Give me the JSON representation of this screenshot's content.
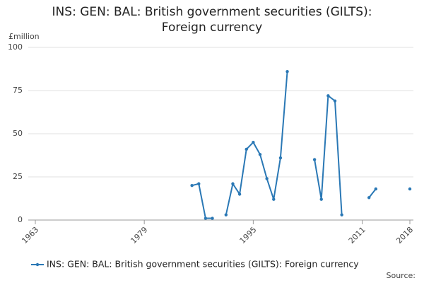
{
  "chart_data": {
    "type": "line",
    "title": "INS: GEN: BAL: British government securities (GILTS): Foreign currency",
    "y_axis_label": "£million",
    "x": [
      1986,
      1987,
      1988,
      1989,
      1990,
      1991,
      1992,
      1993,
      1994,
      1995,
      1996,
      1997,
      1998,
      1999,
      2000,
      2001,
      2002,
      2003,
      2004,
      2005,
      2006,
      2007,
      2008,
      2009,
      2010,
      2011,
      2012,
      2013,
      2014,
      2015,
      2016,
      2017,
      2018
    ],
    "series": [
      {
        "name": "INS: GEN: BAL: British government securities (GILTS): Foreign currency",
        "color": "#2a78b5",
        "values": [
          20,
          21,
          1,
          1,
          null,
          3,
          21,
          15,
          41,
          45,
          38,
          24,
          12,
          36,
          86,
          null,
          null,
          null,
          35,
          12,
          72,
          69,
          3,
          null,
          null,
          null,
          13,
          18,
          null,
          null,
          null,
          null,
          18
        ]
      }
    ],
    "xlim": [
      1963,
      2018
    ],
    "xticks": [
      1963,
      1979,
      1995,
      2011,
      2018
    ],
    "ylim": [
      0,
      100
    ],
    "yticks": [
      0,
      25,
      50,
      75,
      100
    ],
    "grid": true,
    "legend": "bottom",
    "source_label": "Source:"
  }
}
